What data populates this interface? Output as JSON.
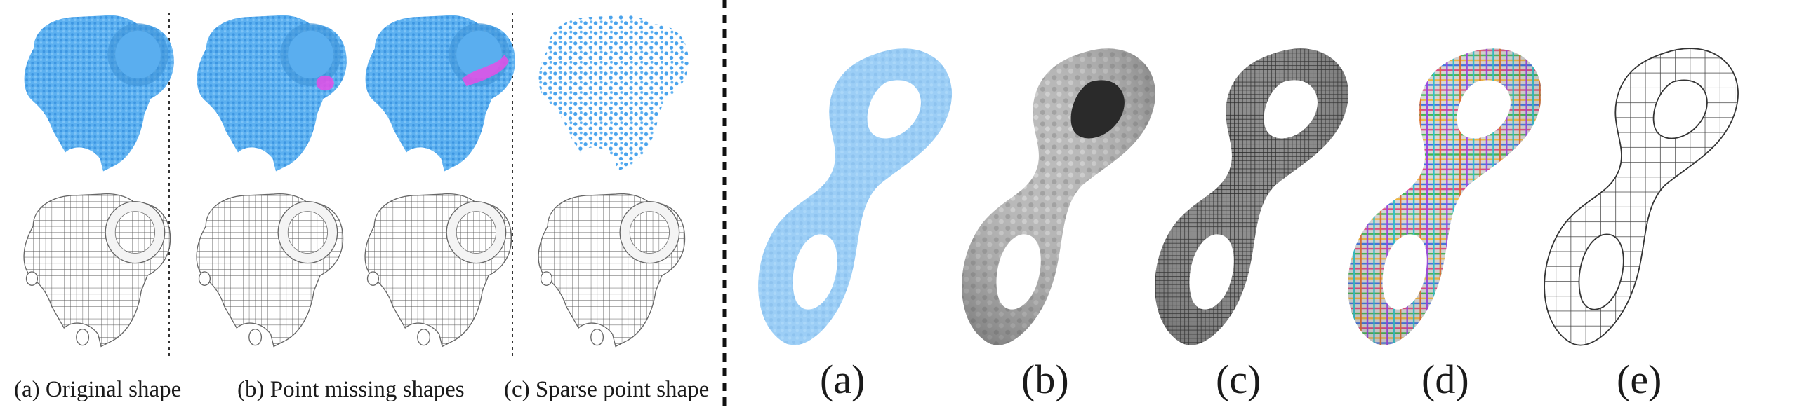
{
  "left_panel": {
    "captions": [
      "(a) Original shape",
      "(b) Point missing shapes",
      "(c) Sparse point shape"
    ]
  },
  "right_panel": {
    "captions": [
      "(a)",
      "(b)",
      "(c)",
      "(d)",
      "(e)"
    ]
  },
  "colors": {
    "point_blue": "#4aa3ec",
    "missing_magenta": "#e64de6",
    "mesh_gray": "#9a9a9a",
    "dark_gray": "#2b2b2b"
  }
}
